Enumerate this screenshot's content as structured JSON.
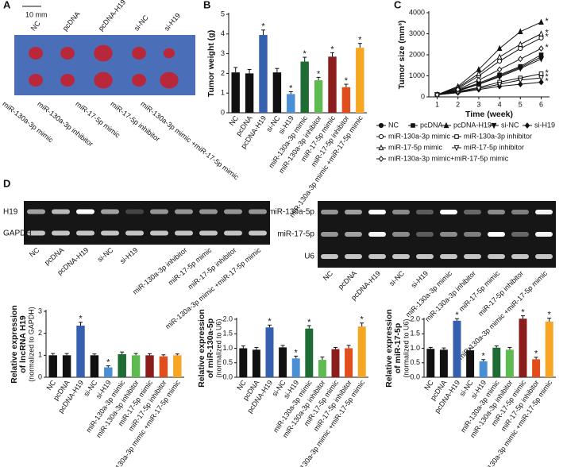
{
  "panel_a": {
    "label": "A",
    "scale_bar": "10 mm",
    "top_labels": [
      "NC",
      "pcDNA",
      "pcDNA-H19",
      "si-NC",
      "si-H19"
    ],
    "bottom_labels": [
      "miR-130a-3p mimic",
      "miR-130a-3p inhibitor",
      "miR-17-5p mimic",
      "miR-17-5p inhibitor",
      "miR-130a-3p mimic +miR-17-5p mimic"
    ]
  },
  "panel_d": {
    "label": "D",
    "left_gel": {
      "rows": [
        "H19",
        "GAPDH"
      ],
      "lanes": [
        "NC",
        "pcDNA",
        "pcDNA-H19",
        "si-NC",
        "si-H19",
        "miR-130a-3p inhibitor",
        "miR-17-5p mimic",
        "miR-17-5p inhibitor",
        "miR-130a-3p mimic +miR-17-5p mimic"
      ]
    },
    "right_gel": {
      "rows": [
        "miR-130a-5p",
        "miR-17-5p",
        "U6"
      ],
      "lanes": [
        "NC",
        "pcDNA",
        "pcDNA-H19",
        "si-NC",
        "si-H19",
        "miR-130a-3p mimic",
        "miR-130a-3p inhibitor",
        "miR-17-5p mimic",
        "miR-17-5p inhibitor",
        "miR-130a-3p mimic +miR-17-5p mimic"
      ]
    }
  },
  "chart_data": [
    {
      "type": "bar",
      "panel_label": "B",
      "ylabel": [
        "Tumor weight (g)"
      ],
      "categories": [
        "NC",
        "pcDNA",
        "pcDNA-H19",
        "si-NC",
        "si-H19",
        "miR-130a-3p mimic",
        "miR-130a-3p inhibitor",
        "miR-17-5p mimic",
        "miR-17-5p inhibitor",
        "miR-130a-3p mimic +miR-17-5p mimic"
      ],
      "values": [
        2.05,
        2.0,
        3.95,
        2.05,
        0.95,
        2.6,
        1.65,
        2.85,
        1.3,
        3.3
      ],
      "errors": [
        0.25,
        0.2,
        0.25,
        0.2,
        0.12,
        0.22,
        0.15,
        0.2,
        0.15,
        0.22
      ],
      "significance": [
        null,
        null,
        "*",
        null,
        "*",
        "*",
        "*",
        "*",
        "*",
        "*"
      ],
      "colors": [
        "#111111",
        "#111111",
        "#3560b0",
        "#111111",
        "#4a8fd6",
        "#1f6b34",
        "#5dbb4f",
        "#8b1d1d",
        "#e24e1b",
        "#f6a623"
      ],
      "ylim": [
        0,
        5
      ],
      "yticks": [
        0,
        1,
        2,
        3,
        4,
        5
      ]
    },
    {
      "type": "line",
      "panel_label": "C",
      "ylabel": [
        "Tumor size (mm³)"
      ],
      "xlabel": "Time (week)",
      "x": [
        1,
        2,
        3,
        4,
        5,
        6
      ],
      "xlim": [
        0.6,
        6.4
      ],
      "xticks": [
        1,
        2,
        3,
        4,
        5,
        6
      ],
      "ylim": [
        0,
        4000
      ],
      "yticks": [
        0,
        1000,
        2000,
        3000,
        4000
      ],
      "series": [
        {
          "name": "NC",
          "marker": "circle",
          "open": false,
          "color": "#111111",
          "values": [
            100,
            300,
            600,
            1000,
            1400,
            1900
          ]
        },
        {
          "name": "pcDNA",
          "marker": "square",
          "open": false,
          "color": "#111111",
          "values": [
            100,
            320,
            650,
            1050,
            1450,
            2000
          ]
        },
        {
          "name": "pcDNA-H19",
          "marker": "triangle",
          "open": false,
          "color": "#111111",
          "values": [
            100,
            500,
            1300,
            2300,
            3100,
            3550
          ],
          "significance": "*"
        },
        {
          "name": "si-NC",
          "marker": "triangle-down",
          "open": false,
          "color": "#111111",
          "values": [
            100,
            280,
            600,
            950,
            1350,
            1800
          ]
        },
        {
          "name": "si-H19",
          "marker": "diamond",
          "open": false,
          "color": "#111111",
          "values": [
            100,
            200,
            350,
            500,
            600,
            700
          ],
          "significance": "*"
        },
        {
          "name": "miR-130a-3p mimic",
          "marker": "circle",
          "open": true,
          "color": "#111111",
          "values": [
            100,
            400,
            1000,
            1700,
            2300,
            2800
          ],
          "significance": "*"
        },
        {
          "name": "miR-130a-3p inhibitor",
          "marker": "square",
          "open": true,
          "color": "#111111",
          "values": [
            100,
            250,
            450,
            700,
            900,
            1100
          ],
          "significance": "*"
        },
        {
          "name": "miR-17-5p mimic",
          "marker": "triangle",
          "open": true,
          "color": "#111111",
          "values": [
            100,
            450,
            1100,
            1900,
            2500,
            3000
          ],
          "significance": "*"
        },
        {
          "name": "miR-17-5p inhibitor",
          "marker": "triangle-down",
          "open": true,
          "color": "#111111",
          "values": [
            100,
            220,
            400,
            600,
            800,
            900
          ],
          "significance": "*"
        },
        {
          "name": "miR-130a-3p mimic+miR-17-5p mimic",
          "marker": "diamond",
          "open": true,
          "color": "#111111",
          "values": [
            100,
            350,
            800,
            1300,
            1800,
            2300
          ],
          "significance": "*"
        }
      ]
    },
    {
      "type": "bar",
      "ylabel": [
        "Relative expression",
        "of lncRNA H19",
        "(normalized to GAPDH)"
      ],
      "categories": [
        "NC",
        "pcDNA",
        "pcDNA-H19",
        "si-NC",
        "si-H19",
        "miR-130a-3p mimic",
        "miR-130a-3p inhibitor",
        "miR-17-5p mimic",
        "miR-17-5p inhibitor",
        "miR-130a-3p mimic +miR-17-5p mimic"
      ],
      "values": [
        1.0,
        1.0,
        2.35,
        1.0,
        0.45,
        1.05,
        1.0,
        1.0,
        0.95,
        1.0
      ],
      "errors": [
        0.08,
        0.08,
        0.15,
        0.06,
        0.07,
        0.1,
        0.08,
        0.07,
        0.07,
        0.06
      ],
      "significance": [
        null,
        null,
        "*",
        null,
        "*",
        null,
        null,
        null,
        null,
        null
      ],
      "colors": [
        "#111111",
        "#111111",
        "#3560b0",
        "#111111",
        "#4a8fd6",
        "#1f6b34",
        "#5dbb4f",
        "#8b1d1d",
        "#e24e1b",
        "#f6a623"
      ],
      "ylim": [
        0,
        3
      ],
      "yticks": [
        0,
        1,
        2,
        3
      ]
    },
    {
      "type": "bar",
      "ylabel": [
        "Relative expression",
        "of miR-130a-5p",
        "(normalized to U6)"
      ],
      "categories": [
        "NC",
        "pcDNA",
        "pcDNA-H19",
        "si-NC",
        "si-H19",
        "miR-130a-3p mimic",
        "miR-130a-3p inhibitor",
        "miR-17-5p mimic",
        "miR-17-5p inhibitor",
        "miR-130a-3p mimic +miR-17-5p mimic"
      ],
      "values": [
        1.0,
        0.95,
        1.72,
        1.03,
        0.65,
        1.68,
        0.6,
        0.97,
        1.0,
        1.75
      ],
      "errors": [
        0.08,
        0.08,
        0.08,
        0.07,
        0.08,
        0.1,
        0.1,
        0.06,
        0.1,
        0.12
      ],
      "significance": [
        null,
        null,
        "*",
        null,
        "*",
        "*",
        null,
        null,
        null,
        "*"
      ],
      "colors": [
        "#111111",
        "#111111",
        "#3560b0",
        "#111111",
        "#4a8fd6",
        "#1f6b34",
        "#5dbb4f",
        "#8b1d1d",
        "#e24e1b",
        "#f6a623"
      ],
      "ylim": [
        0,
        2
      ],
      "yticks": [
        {
          "value": 0,
          "label": "0.0"
        },
        0.5,
        {
          "value": 1,
          "label": "1.0"
        },
        1.5,
        {
          "value": 2,
          "label": "2.0"
        }
      ]
    },
    {
      "type": "bar",
      "ylabel": [
        "Relative expression",
        "of miR-17-5p",
        "(normalized to U6)"
      ],
      "categories": [
        "NC",
        "pcDNA",
        "pcDNA-H19",
        "si-NC",
        "si-H19",
        "miR-130a-3p mimic",
        "miR-130a-3p inhibitor",
        "miR-17-5p mimic",
        "miR-17-5p inhibitor",
        "miR-130a-3p mimic +miR-17-5p mimic"
      ],
      "values": [
        0.98,
        0.95,
        1.95,
        0.93,
        0.55,
        1.02,
        0.95,
        2.02,
        0.62,
        1.92
      ],
      "errors": [
        0.05,
        0.06,
        0.07,
        0.08,
        0.06,
        0.06,
        0.08,
        0.1,
        0.07,
        0.12
      ],
      "significance": [
        null,
        null,
        "*",
        null,
        "*",
        null,
        null,
        "*",
        "*",
        "*"
      ],
      "colors": [
        "#111111",
        "#111111",
        "#3560b0",
        "#111111",
        "#4a8fd6",
        "#1f6b34",
        "#5dbb4f",
        "#8b1d1d",
        "#e24e1b",
        "#f6a623"
      ],
      "ylim": [
        0,
        2
      ],
      "yticks": [
        {
          "value": 0,
          "label": "0.0"
        },
        0.5,
        {
          "value": 1,
          "label": "1.0"
        },
        1.5,
        {
          "value": 2,
          "label": "2.0"
        }
      ]
    }
  ]
}
